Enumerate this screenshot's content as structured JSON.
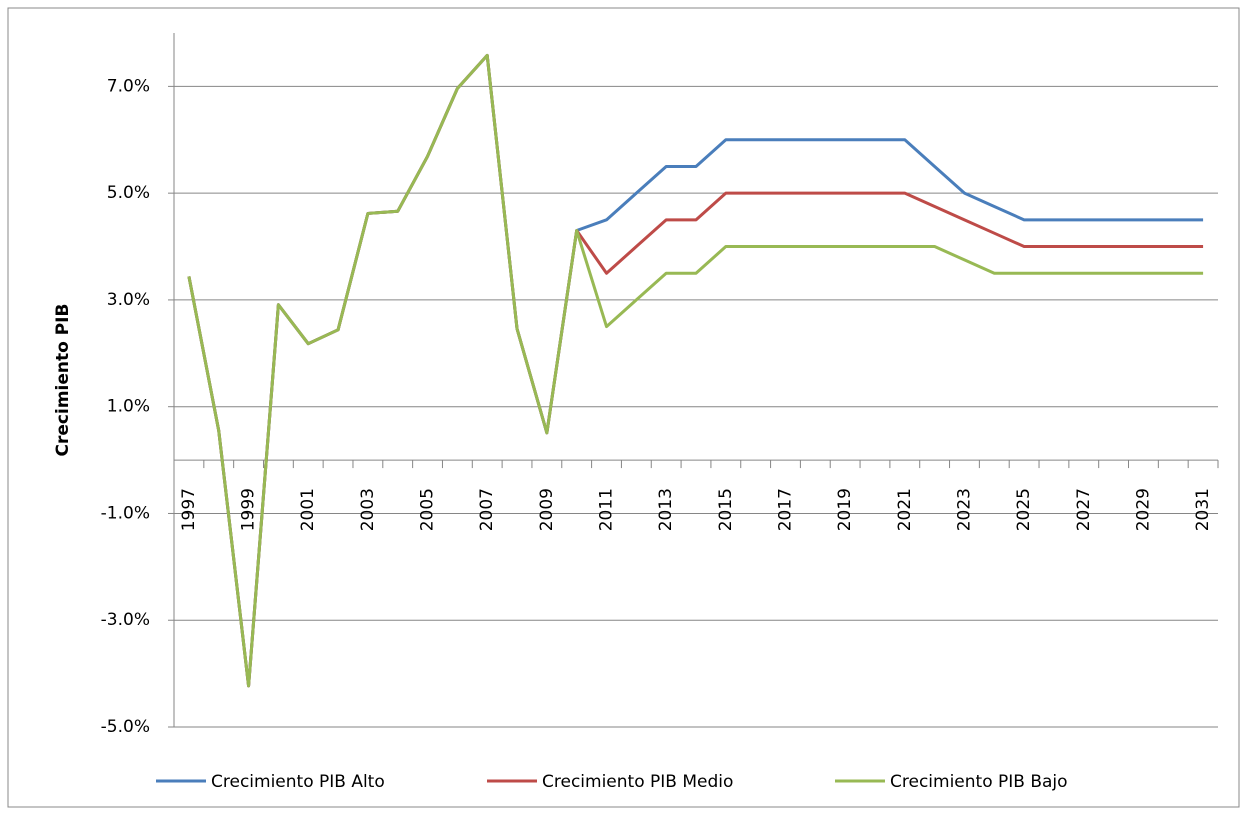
{
  "chart_data": {
    "type": "line",
    "y_label": "Crecimiento PIB",
    "categories": [
      "1997",
      null,
      "1999",
      null,
      "2001",
      null,
      "2003",
      null,
      "2005",
      null,
      "2007",
      null,
      "2009",
      null,
      "2011",
      null,
      "2013",
      null,
      "2015",
      null,
      "2017",
      null,
      "2019",
      null,
      "2021",
      null,
      "2023",
      null,
      "2025",
      null,
      "2027",
      null,
      "2029",
      null,
      "2031"
    ],
    "series": [
      {
        "name": "Crecimiento PIB Alto",
        "color": "#4a7ebb",
        "values": [
          3.44,
          0.55,
          -4.23,
          2.91,
          2.18,
          2.44,
          4.62,
          4.66,
          5.69,
          6.96,
          7.58,
          2.46,
          0.51,
          4.3,
          4.5,
          5.0,
          5.5,
          5.5,
          6.0,
          6.0,
          6.0,
          6.0,
          6.0,
          6.0,
          6.0,
          5.5,
          5.0,
          4.75,
          4.5,
          4.5,
          4.5,
          4.5,
          4.5,
          4.5,
          4.5
        ]
      },
      {
        "name": "Crecimiento PIB Medio",
        "color": "#be4b48",
        "values": [
          3.44,
          0.55,
          -4.23,
          2.91,
          2.18,
          2.44,
          4.62,
          4.66,
          5.69,
          6.96,
          7.58,
          2.46,
          0.51,
          4.3,
          3.5,
          4.0,
          4.5,
          4.5,
          5.0,
          5.0,
          5.0,
          5.0,
          5.0,
          5.0,
          5.0,
          4.75,
          4.5,
          4.25,
          4.0,
          4.0,
          4.0,
          4.0,
          4.0,
          4.0,
          4.0
        ]
      },
      {
        "name": "Crecimiento PIB Bajo",
        "color": "#98b954",
        "values": [
          3.44,
          0.55,
          -4.23,
          2.91,
          2.18,
          2.44,
          4.62,
          4.66,
          5.69,
          6.96,
          7.58,
          2.46,
          0.51,
          4.3,
          2.5,
          3.0,
          3.5,
          3.5,
          4.0,
          4.0,
          4.0,
          4.0,
          4.0,
          4.0,
          4.0,
          4.0,
          3.75,
          3.5,
          3.5,
          3.5,
          3.5,
          3.5,
          3.5,
          3.5,
          3.5
        ]
      }
    ],
    "ylim": [
      -5,
      8
    ],
    "yticks": [
      {
        "value": -5,
        "label": "-5.0%"
      },
      {
        "value": -3,
        "label": "-3.0%"
      },
      {
        "value": -1,
        "label": "-1.0%"
      },
      {
        "value": 1,
        "label": "1.0%"
      },
      {
        "value": 3,
        "label": "3.0%"
      },
      {
        "value": 5,
        "label": "5.0%"
      },
      {
        "value": 7,
        "label": "7.0%"
      }
    ],
    "grid": true,
    "legend": "bottom"
  }
}
